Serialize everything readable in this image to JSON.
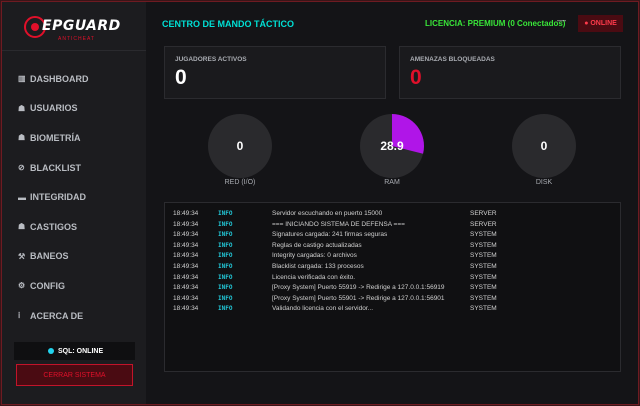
{
  "sidebar": {
    "logo_text": "EPGUARD",
    "logo_sub": "ANTICHEAT",
    "items": [
      {
        "icon": "dashboard-icon",
        "glyph": "▥",
        "label": "DASHBOARD"
      },
      {
        "icon": "users-icon",
        "glyph": "☗",
        "label": "USUARIOS"
      },
      {
        "icon": "fingerprint-icon",
        "glyph": "☗",
        "label": "BIOMETRÍA"
      },
      {
        "icon": "block-icon",
        "glyph": "⊘",
        "label": "BLACKLIST"
      },
      {
        "icon": "integrity-icon",
        "glyph": "▬",
        "label": "INTEGRIDAD"
      },
      {
        "icon": "gavel-icon",
        "glyph": "☗",
        "label": "CASTIGOS"
      },
      {
        "icon": "hammer-icon",
        "glyph": "⚒",
        "label": "BANEOS"
      },
      {
        "icon": "gear-icon",
        "glyph": "⚙",
        "label": "CONFIG"
      },
      {
        "icon": "info-icon",
        "glyph": "ⅰ",
        "label": "ACERCA DE"
      }
    ],
    "sql_status": "SQL: ONLINE",
    "logout_label": "CERRAR SISTEMA"
  },
  "header": {
    "title": "CENTRO DE MANDO TÁCTICO",
    "license": "LICENCIA: PREMIUM (0 Conectados)",
    "minimize": "—",
    "status_badge": "● ONLINE"
  },
  "stats": {
    "players_label": "JUGADORES ACTIVOS",
    "players_value": "0",
    "threats_label": "AMENAZAS BLOQUEADAS",
    "threats_value": "0"
  },
  "gauges": [
    {
      "name": "red",
      "value": "0",
      "label": "RED (I/O)",
      "fraction": 0
    },
    {
      "name": "ram",
      "value": "28.9",
      "label": "RAM",
      "fraction": 0.289
    },
    {
      "name": "disk",
      "value": "0",
      "label": "DISK",
      "fraction": 0
    }
  ],
  "colors": {
    "accent_cyan": "#00e0d5",
    "license_green": "#39e639",
    "danger_red": "#e0102a",
    "gauge_fill": "#b015e8"
  },
  "log": [
    {
      "time": "18:49:34",
      "level": "INFO",
      "msg": "Servidor escuchando en puerto 15000",
      "src": "SERVER"
    },
    {
      "time": "18:49:34",
      "level": "INFO",
      "msg": "=== INICIANDO SISTEMA DE DEFENSA ===",
      "src": "SERVER"
    },
    {
      "time": "18:49:34",
      "level": "INFO",
      "msg": "Signatures cargada: 241 firmas seguras",
      "src": "SYSTEM"
    },
    {
      "time": "18:49:34",
      "level": "INFO",
      "msg": "Reglas de castigo actualizadas",
      "src": "SYSTEM"
    },
    {
      "time": "18:49:34",
      "level": "INFO",
      "msg": "Integrity cargadas: 0 archivos",
      "src": "SYSTEM"
    },
    {
      "time": "18:49:34",
      "level": "INFO",
      "msg": "Blacklist cargada: 133 procesos",
      "src": "SYSTEM"
    },
    {
      "time": "18:49:34",
      "level": "INFO",
      "msg": "Licencia verificada con éxito.",
      "src": "SYSTEM"
    },
    {
      "time": "18:49:34",
      "level": "INFO",
      "msg": "[Proxy System] Puerto 55919 -> Redirige a 127.0.0.1:56919",
      "src": "SYSTEM"
    },
    {
      "time": "18:49:34",
      "level": "INFO",
      "msg": "[Proxy System] Puerto 55901 -> Redirige a 127.0.0.1:56901",
      "src": "SYSTEM"
    },
    {
      "time": "18:49:34",
      "level": "INFO",
      "msg": "Validando licencia con el servidor...",
      "src": "SYSTEM"
    }
  ]
}
